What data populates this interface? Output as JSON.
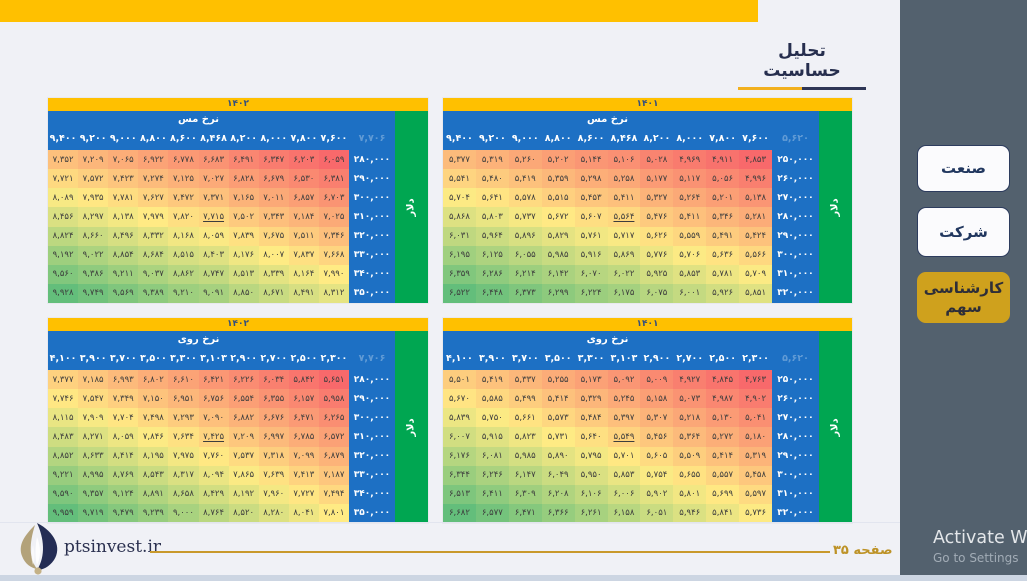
{
  "title": "تحلیل حساسیت",
  "sidebar": {
    "buttons": [
      {
        "label": "صنعت",
        "active": false
      },
      {
        "label": "شرکت",
        "active": false
      },
      {
        "label": "کارشناسی سهم",
        "active": true
      }
    ],
    "watermark_line1": "Activate W",
    "watermark_line2": "Go to Settings"
  },
  "footer": {
    "site": "ptsinvest.ir",
    "page_label": "صفحه ۳۵"
  },
  "colors": {
    "accent_gold": "#FFC000",
    "header_blue": "#1d70c4",
    "unit_green": "#00A651",
    "sidebar_slate": "#53616E",
    "active_button_gold": "#cfa11d",
    "scale_low": "#F8696B",
    "scale_mid": "#FFEB84",
    "scale_high": "#63BE7B"
  },
  "chart_data": [
    {
      "type": "heatmap",
      "year": "۱۴۰۲",
      "commodity_label": "نرخ مس",
      "unit_label": "دلار",
      "number_style": "persian-digits",
      "ghost_value": 7706,
      "columns": [
        9400,
        9200,
        9000,
        8800,
        8600,
        8468,
        8200,
        8000,
        7800,
        7600
      ],
      "row_labels": [
        280000,
        290000,
        300000,
        310000,
        320000,
        330000,
        340000,
        350000
      ],
      "values": [
        [
          7352,
          7209,
          7065,
          6922,
          6778,
          6683,
          6491,
          6347,
          6203,
          6059
        ],
        [
          7721,
          7572,
          7423,
          7274,
          7125,
          7027,
          6828,
          6679,
          6530,
          6381
        ],
        [
          8089,
          7935,
          7781,
          7627,
          7472,
          7371,
          7165,
          7011,
          6857,
          6703
        ],
        [
          8456,
          8297,
          8138,
          7979,
          7820,
          7715,
          7502,
          7343,
          7184,
          7025
        ],
        [
          8824,
          8660,
          8496,
          8332,
          8168,
          8059,
          7839,
          7675,
          7511,
          7346
        ],
        [
          9192,
          9022,
          8854,
          8684,
          8515,
          8403,
          8176,
          8007,
          7837,
          7668
        ],
        [
          9560,
          9386,
          9211,
          9037,
          8862,
          8747,
          8513,
          8339,
          8164,
          7990
        ],
        [
          9928,
          9749,
          9569,
          9389,
          9210,
          9091,
          8850,
          8671,
          8491,
          8312
        ]
      ],
      "highlight_cell": {
        "row": 3,
        "col": 5
      }
    },
    {
      "type": "heatmap",
      "year": "۱۴۰۱",
      "commodity_label": "نرخ مس",
      "unit_label": "دلار",
      "number_style": "persian-digits",
      "ghost_value": 5620,
      "columns": [
        9400,
        9200,
        9000,
        8800,
        8600,
        8468,
        8200,
        8000,
        7800,
        7600
      ],
      "row_labels": [
        250000,
        260000,
        270000,
        280000,
        290000,
        300000,
        310000,
        320000
      ],
      "values": [
        [
          5377,
          5319,
          5260,
          5202,
          5144,
          5106,
          5028,
          4969,
          4911,
          4853
        ],
        [
          5541,
          5480,
          5419,
          5359,
          5298,
          5258,
          5177,
          5117,
          5056,
          4996
        ],
        [
          5704,
          5641,
          5578,
          5515,
          5453,
          5411,
          5327,
          5264,
          5201,
          5138
        ],
        [
          5868,
          5803,
          5737,
          5672,
          5607,
          5564,
          5476,
          5411,
          5346,
          5281
        ],
        [
          6031,
          5964,
          5896,
          5829,
          5761,
          5717,
          5626,
          5559,
          5491,
          5424
        ],
        [
          6195,
          6125,
          6055,
          5985,
          5916,
          5869,
          5776,
          5706,
          5636,
          5566
        ],
        [
          6359,
          6286,
          6214,
          6142,
          6070,
          6022,
          5925,
          5853,
          5781,
          5709
        ],
        [
          6522,
          6448,
          6373,
          6299,
          6224,
          6175,
          6075,
          6001,
          5926,
          5851
        ]
      ],
      "highlight_cell": {
        "row": 3,
        "col": 5
      }
    },
    {
      "type": "heatmap",
      "year": "۱۴۰۲",
      "commodity_label": "نرخ روی",
      "unit_label": "دلار",
      "number_style": "persian-digits",
      "ghost_value": 7706,
      "columns": [
        4100,
        3900,
        3700,
        3500,
        3300,
        3103,
        2900,
        2700,
        2500,
        2300
      ],
      "row_labels": [
        280000,
        290000,
        300000,
        310000,
        320000,
        330000,
        340000,
        350000
      ],
      "values": [
        [
          7377,
          7185,
          6993,
          6802,
          6610,
          6421,
          6226,
          6034,
          5842,
          5651
        ],
        [
          7746,
          7547,
          7349,
          7150,
          6951,
          6756,
          6554,
          6355,
          6157,
          5958
        ],
        [
          8115,
          7909,
          7704,
          7498,
          7293,
          7090,
          6882,
          6676,
          6471,
          6265
        ],
        [
          8483,
          8271,
          8059,
          7846,
          7634,
          7425,
          7209,
          6997,
          6785,
          6572
        ],
        [
          8852,
          8633,
          8414,
          8195,
          7975,
          7760,
          7537,
          7318,
          7099,
          6879
        ],
        [
          9221,
          8995,
          8769,
          8543,
          8317,
          8094,
          7865,
          7639,
          7413,
          7187
        ],
        [
          9590,
          9357,
          9124,
          8891,
          8658,
          8429,
          8192,
          7960,
          7727,
          7494
        ],
        [
          9959,
          9719,
          9479,
          9239,
          9000,
          8764,
          8520,
          8280,
          8041,
          7801
        ]
      ],
      "highlight_cell": {
        "row": 3,
        "col": 5
      }
    },
    {
      "type": "heatmap",
      "year": "۱۴۰۱",
      "commodity_label": "نرخ روی",
      "unit_label": "دلار",
      "number_style": "persian-digits",
      "ghost_value": 5620,
      "columns": [
        4100,
        3900,
        3700,
        3500,
        3300,
        3103,
        2900,
        2700,
        2500,
        2300
      ],
      "row_labels": [
        250000,
        260000,
        270000,
        280000,
        290000,
        300000,
        310000,
        320000
      ],
      "values": [
        [
          5501,
          5419,
          5337,
          5255,
          5173,
          5092,
          5009,
          4927,
          4845,
          4763
        ],
        [
          5670,
          5585,
          5499,
          5414,
          5329,
          5245,
          5158,
          5073,
          4987,
          4902
        ],
        [
          5839,
          5750,
          5661,
          5573,
          5484,
          5397,
          5307,
          5218,
          5130,
          5041
        ],
        [
          6007,
          5915,
          5823,
          5731,
          5640,
          5549,
          5456,
          5364,
          5272,
          5180
        ],
        [
          6176,
          6081,
          5985,
          5890,
          5795,
          5701,
          5605,
          5509,
          5414,
          5319
        ],
        [
          6344,
          6246,
          6147,
          6049,
          5950,
          5853,
          5754,
          5655,
          5557,
          5458
        ],
        [
          6513,
          6411,
          6309,
          6208,
          6106,
          6006,
          5902,
          5801,
          5699,
          5597
        ],
        [
          6682,
          6577,
          6471,
          6366,
          6261,
          6158,
          6051,
          5946,
          5841,
          5736
        ]
      ],
      "highlight_cell": {
        "row": 3,
        "col": 5
      }
    }
  ]
}
